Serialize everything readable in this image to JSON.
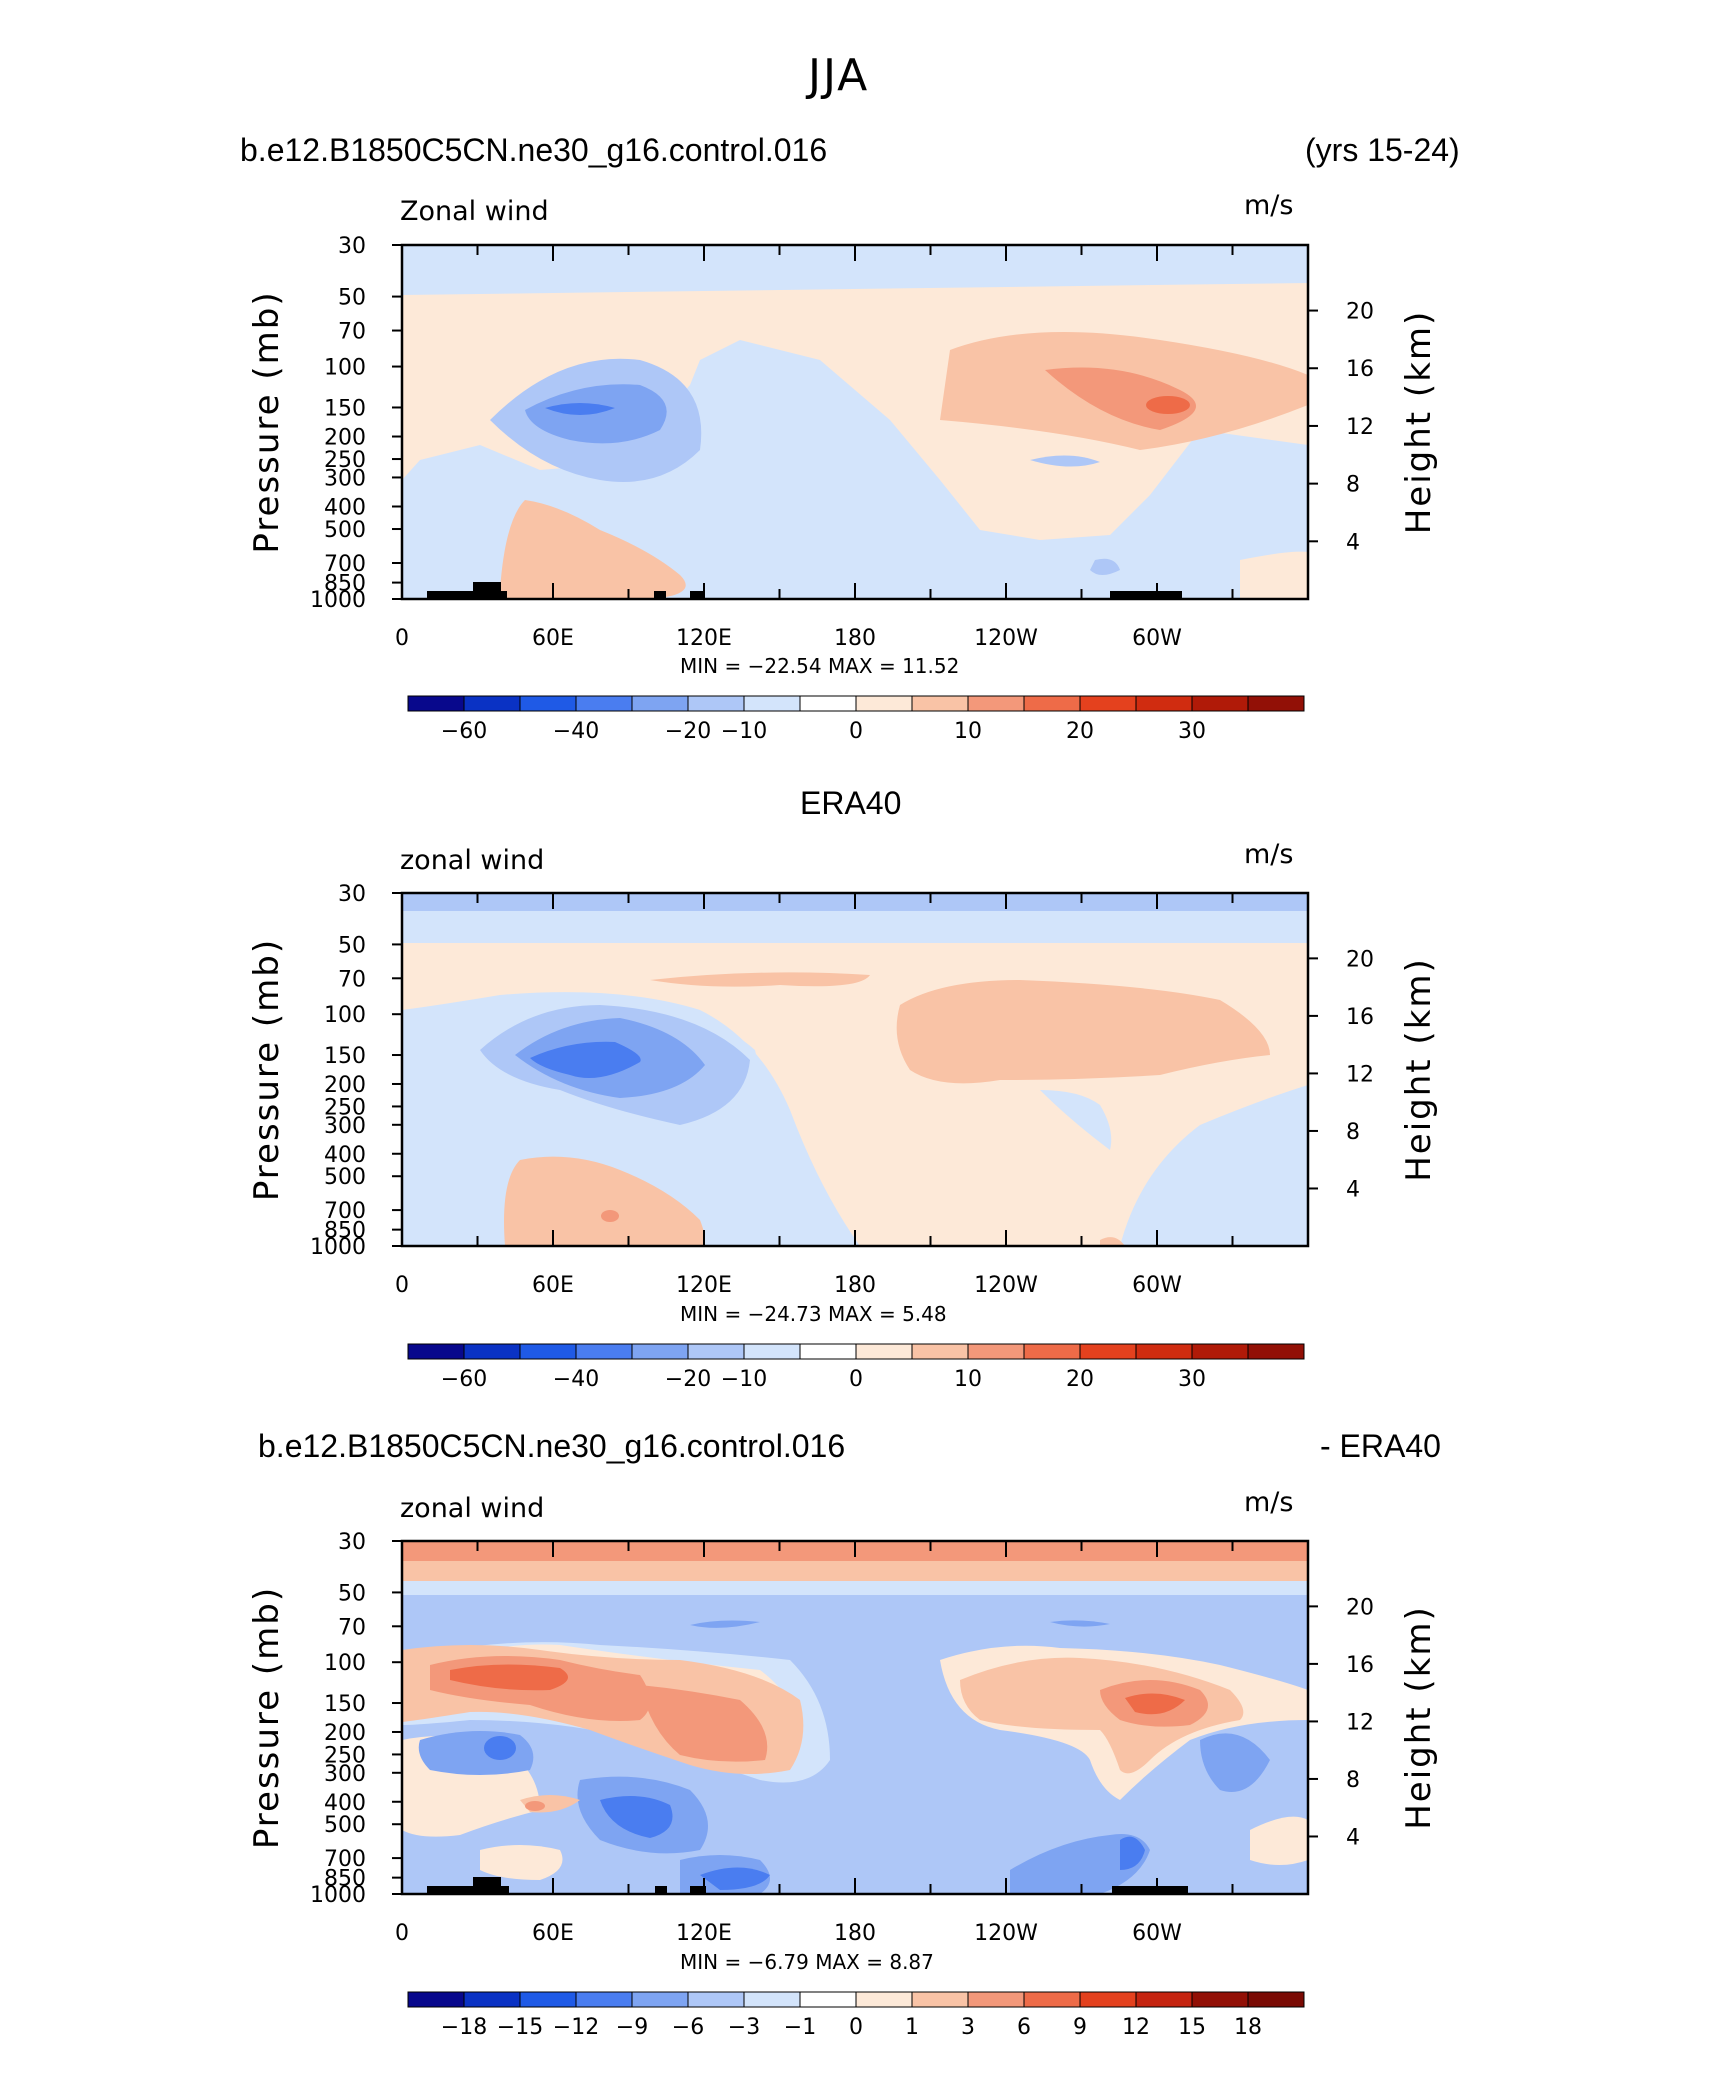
{
  "title": "JJA",
  "panels": [
    {
      "title_left": "b.e12.B1850C5CN.ne30_g16.control.016",
      "title_right": "(yrs 15-24)",
      "variable": "Zonal wind",
      "units": "m/s",
      "minmax": "MIN = −22.54   MAX =    11.52"
    },
    {
      "title_center": "ERA40",
      "variable": "zonal wind",
      "units": "m/s",
      "minmax": "MIN = −24.73   MAX =     5.48"
    },
    {
      "title_left": "b.e12.B1850C5CN.ne30_g16.control.016",
      "title_right": "- ERA40",
      "variable": "zonal wind",
      "units": "m/s",
      "minmax": "MIN =    −6.79   MAX =     8.87"
    }
  ],
  "axes": {
    "y_left_title": "Pressure (mb)",
    "y_right_title": "Height (km)",
    "pressure_ticks": [
      "30",
      "50",
      "70",
      "100",
      "150",
      "200",
      "250",
      "300",
      "400",
      "500",
      "700",
      "850",
      "1000"
    ],
    "height_ticks": [
      "20",
      "16",
      "12",
      "8",
      "4"
    ],
    "lon_ticks": [
      "0",
      "60E",
      "120E",
      "180",
      "120W",
      "60W"
    ]
  },
  "colorbars": {
    "field_labels": [
      "−60",
      "−40",
      "−20",
      "−10",
      "0",
      "10",
      "20",
      "30"
    ],
    "diff_labels": [
      "−18",
      "−15",
      "−12",
      "−9",
      "−6",
      "−3",
      "−1",
      "0",
      "1",
      "3",
      "6",
      "9",
      "12",
      "15",
      "18"
    ],
    "colors": [
      "#08088c",
      "#0a32c4",
      "#1f5ae6",
      "#4a7df0",
      "#7ea4f2",
      "#aec7f7",
      "#d3e4fb",
      "#fde9d8",
      "#f9c3a6",
      "#f3987a",
      "#ee6b48",
      "#e4411e",
      "#c52410",
      "#921006"
    ]
  },
  "chart_data": [
    {
      "type": "heatmap",
      "title": "b.e12.B1850C5CN.ne30_g16.control.016",
      "subtitle": "(yrs 15-24)",
      "xlabel": "",
      "ylabel": "Pressure (mb)",
      "y2label": "Height (km)",
      "x_ticks": [
        "0",
        "60E",
        "120E",
        "180",
        "120W",
        "60W"
      ],
      "y_ticks_mb": [
        30,
        50,
        70,
        100,
        150,
        200,
        250,
        300,
        400,
        500,
        700,
        850,
        1000
      ],
      "y2_ticks_km": [
        20,
        16,
        12,
        8,
        4
      ],
      "min": -22.54,
      "max": 11.52,
      "contour_levels": [
        -60,
        -40,
        -20,
        -10,
        0,
        10,
        20,
        30
      ],
      "features": [
        {
          "lon": 70,
          "p": 150,
          "value": -20
        },
        {
          "lon": 300,
          "p": 150,
          "value": 10
        }
      ]
    },
    {
      "type": "heatmap",
      "title": "ERA40",
      "ylabel": "Pressure (mb)",
      "y2label": "Height (km)",
      "x_ticks": [
        "0",
        "60E",
        "120E",
        "180",
        "120W",
        "60W"
      ],
      "y_ticks_mb": [
        30,
        50,
        70,
        100,
        150,
        200,
        250,
        300,
        400,
        500,
        700,
        850,
        1000
      ],
      "y2_ticks_km": [
        20,
        16,
        12,
        8,
        4
      ],
      "min": -24.73,
      "max": 5.48,
      "contour_levels": [
        -60,
        -40,
        -20,
        -10,
        0,
        10,
        20,
        30
      ],
      "features": [
        {
          "lon": 75,
          "p": 150,
          "value": -20
        }
      ]
    },
    {
      "type": "heatmap",
      "title": "b.e12.B1850C5CN.ne30_g16.control.016",
      "subtitle": "- ERA40",
      "ylabel": "Pressure (mb)",
      "y2label": "Height (km)",
      "x_ticks": [
        "0",
        "60E",
        "120E",
        "180",
        "120W",
        "60W"
      ],
      "y_ticks_mb": [
        30,
        50,
        70,
        100,
        150,
        200,
        250,
        300,
        400,
        500,
        700,
        850,
        1000
      ],
      "y2_ticks_km": [
        20,
        16,
        12,
        8,
        4
      ],
      "min": -6.79,
      "max": 8.87,
      "contour_levels": [
        -18,
        -15,
        -12,
        -9,
        -6,
        -3,
        -1,
        0,
        1,
        3,
        6,
        9,
        12,
        15,
        18
      ],
      "features": [
        {
          "lon": 40,
          "p": 100,
          "value": 6
        },
        {
          "lon": 300,
          "p": 150,
          "value": 6
        },
        {
          "lon": 180,
          "p": 300,
          "value": -3
        }
      ]
    }
  ]
}
